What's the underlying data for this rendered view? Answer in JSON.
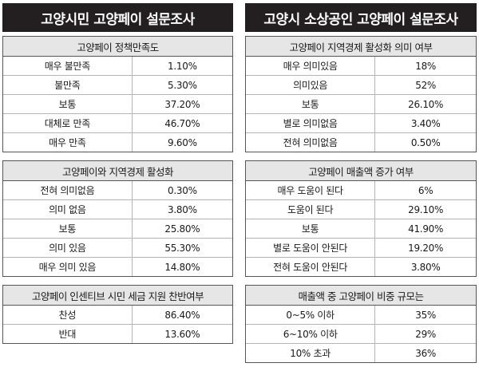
{
  "left": {
    "header": "고양시민 고양페이 설문조사",
    "tables": [
      {
        "title": "고양페이 정책만족도",
        "rows": [
          {
            "label": "매우 불만족",
            "value": "1.10%"
          },
          {
            "label": "불만족",
            "value": "5.30%"
          },
          {
            "label": "보통",
            "value": "37.20%"
          },
          {
            "label": "대체로 만족",
            "value": "46.70%"
          },
          {
            "label": "매우 만족",
            "value": "9.60%"
          }
        ]
      },
      {
        "title": "고양페이와 지역경제 활성화",
        "rows": [
          {
            "label": "전혀 의미없음",
            "value": "0.30%"
          },
          {
            "label": "의미 없음",
            "value": "3.80%"
          },
          {
            "label": "보통",
            "value": "25.80%"
          },
          {
            "label": "의미 있음",
            "value": "55.30%"
          },
          {
            "label": "매우 의미 있음",
            "value": "14.80%"
          }
        ]
      },
      {
        "title": "고양페이 인센티브 시민 세금 지원 찬반여부",
        "rows": [
          {
            "label": "찬성",
            "value": "86.40%"
          },
          {
            "label": "반대",
            "value": "13.60%"
          }
        ]
      }
    ]
  },
  "right": {
    "header": "고양시 소상공인 고양페이 설문조사",
    "tables": [
      {
        "title": "고양페이 지역경제 활성화 의미 여부",
        "rows": [
          {
            "label": "매우 의미있음",
            "value": "18%"
          },
          {
            "label": "의미있음",
            "value": "52%"
          },
          {
            "label": "보통",
            "value": "26.10%"
          },
          {
            "label": "별로 의미없음",
            "value": "3.40%"
          },
          {
            "label": "전혀 의미없음",
            "value": "0.50%"
          }
        ]
      },
      {
        "title": "고양페이 매출액 증가 여부",
        "rows": [
          {
            "label": "매우 도움이 된다",
            "value": "6%"
          },
          {
            "label": "도움이 된다",
            "value": "29.10%"
          },
          {
            "label": "보통",
            "value": "41.90%"
          },
          {
            "label": "별로 도움이 안된다",
            "value": "19.20%"
          },
          {
            "label": "전혀 도움이 안된다",
            "value": "3.80%"
          }
        ]
      },
      {
        "title": "매출액 중 고양페이 비중 규모는",
        "rows": [
          {
            "label": "0~5% 이하",
            "value": "35%"
          },
          {
            "label": "6~10% 이하",
            "value": "29%"
          },
          {
            "label": "10% 초과",
            "value": "36%"
          }
        ]
      }
    ]
  }
}
